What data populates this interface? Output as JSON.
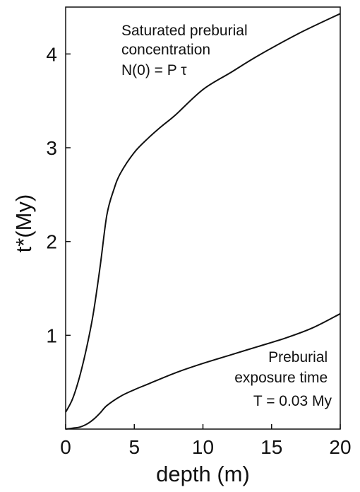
{
  "chart_data": {
    "type": "line",
    "xlabel": "depth (m)",
    "ylabel": "t*(My)",
    "xlim": [
      0,
      20
    ],
    "ylim": [
      0,
      4.5
    ],
    "x_ticks": [
      0,
      5,
      10,
      15,
      20
    ],
    "y_ticks": [
      1,
      2,
      3,
      4
    ],
    "grid": false,
    "series": [
      {
        "x": [
          0,
          0.5,
          1,
          1.5,
          2,
          2.5,
          3,
          3.5,
          4,
          5,
          6,
          7,
          8,
          10,
          12,
          14,
          17,
          20
        ],
        "y": [
          0.18,
          0.32,
          0.55,
          0.85,
          1.22,
          1.72,
          2.28,
          2.55,
          2.73,
          2.95,
          3.1,
          3.23,
          3.35,
          3.62,
          3.8,
          3.98,
          4.22,
          4.43
        ]
      },
      {
        "x": [
          0,
          0.5,
          1,
          1.5,
          2,
          2.5,
          3,
          4,
          5,
          6,
          8,
          10,
          12,
          14,
          16,
          18,
          20
        ],
        "y": [
          0.0,
          0.01,
          0.02,
          0.05,
          0.1,
          0.17,
          0.25,
          0.35,
          0.42,
          0.48,
          0.6,
          0.7,
          0.79,
          0.88,
          0.97,
          1.08,
          1.23
        ]
      }
    ],
    "annotations": [
      {
        "lines": [
          "Saturated preburial",
          "concentration",
          "N(0) = P τ"
        ],
        "near": "top-center"
      },
      {
        "lines": [
          "Preburial",
          "exposure time",
          "T = 0.03 My"
        ],
        "near": "bottom-right"
      }
    ]
  }
}
